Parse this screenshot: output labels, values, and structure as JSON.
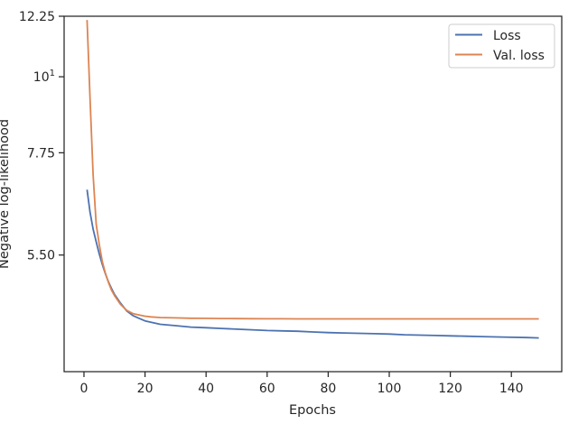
{
  "chart_data": {
    "type": "line",
    "title": "",
    "xlabel": "Epochs",
    "ylabel": "Negative log-likelihood",
    "xscale": "linear",
    "yscale": "log",
    "xlim": [
      -6.5,
      156.5
    ],
    "ylim": [
      3.72,
      12.25
    ],
    "grid": false,
    "legend": {
      "placement": "top-right"
    },
    "x_ticks": [
      0,
      20,
      40,
      60,
      80,
      100,
      120,
      140
    ],
    "x_tick_labels": [
      "0",
      "20",
      "40",
      "60",
      "80",
      "100",
      "120",
      "140"
    ],
    "y_ticks": [
      5.5,
      7.75,
      10,
      12.25
    ],
    "y_tick_labels": [
      "5.50",
      "7.75",
      "10",
      "12.25"
    ],
    "y_tick_superscripts": [
      "",
      "",
      "1",
      ""
    ],
    "series": [
      {
        "name": "Loss",
        "color": "#4c72b0",
        "x": [
          1,
          2,
          3,
          4,
          5,
          6,
          7,
          8,
          9,
          10,
          12,
          14,
          16,
          18,
          20,
          22,
          25,
          30,
          35,
          40,
          45,
          50,
          55,
          60,
          65,
          70,
          75,
          80,
          85,
          90,
          95,
          100,
          105,
          110,
          115,
          120,
          125,
          130,
          135,
          140,
          145,
          149
        ],
        "y": [
          6.85,
          6.35,
          6.0,
          5.75,
          5.52,
          5.33,
          5.17,
          5.03,
          4.92,
          4.82,
          4.68,
          4.56,
          4.49,
          4.45,
          4.41,
          4.39,
          4.36,
          4.34,
          4.32,
          4.31,
          4.3,
          4.29,
          4.28,
          4.27,
          4.265,
          4.26,
          4.25,
          4.24,
          4.235,
          4.23,
          4.225,
          4.22,
          4.21,
          4.205,
          4.2,
          4.195,
          4.19,
          4.185,
          4.18,
          4.175,
          4.17,
          4.165
        ]
      },
      {
        "name": "Val. loss",
        "color": "#dd8452",
        "x": [
          1,
          2,
          3,
          4,
          5,
          6,
          7,
          8,
          9,
          10,
          12,
          14,
          16,
          18,
          20,
          22,
          25,
          30,
          35,
          40,
          45,
          50,
          55,
          60,
          65,
          70,
          75,
          80,
          85,
          90,
          95,
          100,
          105,
          110,
          115,
          120,
          125,
          130,
          135,
          140,
          145,
          149
        ],
        "y": [
          12.1,
          9.3,
          7.2,
          6.1,
          5.7,
          5.38,
          5.18,
          5.02,
          4.89,
          4.8,
          4.66,
          4.57,
          4.52,
          4.5,
          4.48,
          4.47,
          4.46,
          4.455,
          4.45,
          4.448,
          4.446,
          4.444,
          4.443,
          4.442,
          4.441,
          4.44,
          4.44,
          4.44,
          4.44,
          4.44,
          4.44,
          4.44,
          4.44,
          4.44,
          4.44,
          4.44,
          4.44,
          4.44,
          4.44,
          4.44,
          4.44,
          4.44
        ]
      }
    ]
  }
}
